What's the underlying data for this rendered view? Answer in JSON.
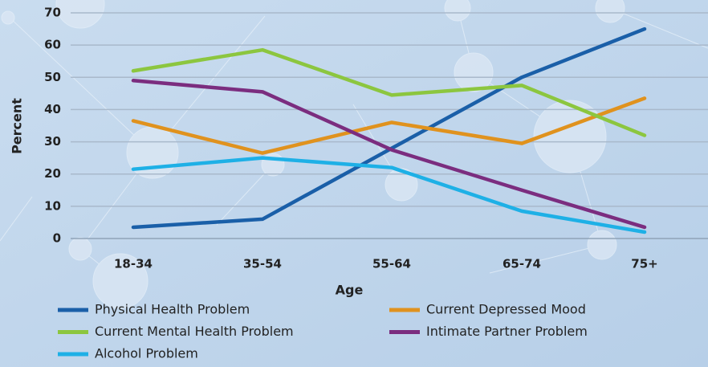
{
  "chart_data": {
    "type": "line",
    "categories": [
      "18-34",
      "35-54",
      "55-64",
      "65-74",
      "75+"
    ],
    "series": [
      {
        "name": "Physical Health Problem",
        "color": "#1a5fa8",
        "values": [
          3.5,
          6,
          28,
          50,
          65
        ]
      },
      {
        "name": "Current Depressed Mood",
        "color": "#e0921e",
        "values": [
          36.5,
          26.5,
          36,
          29.5,
          43.5
        ]
      },
      {
        "name": "Current Mental Health Problem",
        "color": "#8cc63f",
        "values": [
          52,
          58.5,
          44.5,
          47.5,
          32
        ]
      },
      {
        "name": "Intimate Partner Problem",
        "color": "#7b2d7f",
        "values": [
          49,
          45.5,
          27.5,
          15,
          3.5
        ]
      },
      {
        "name": "Alcohol Problem",
        "color": "#1eb0e6",
        "values": [
          21.5,
          25,
          22,
          8.5,
          2
        ]
      }
    ],
    "xlabel": "Age",
    "ylabel": "Percent",
    "ylim": [
      0,
      70
    ],
    "yticks": [
      0,
      10,
      20,
      30,
      40,
      50,
      60,
      70
    ],
    "grid": true
  }
}
